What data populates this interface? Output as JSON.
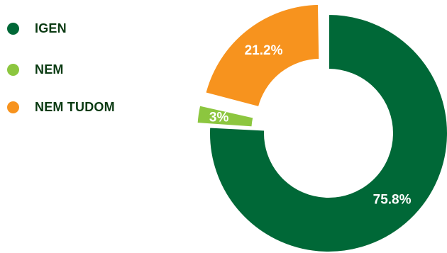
{
  "chart_data": {
    "type": "pie",
    "style": "donut",
    "title": "",
    "categories": [
      "IGEN",
      "NEM",
      "NEM TUDOM"
    ],
    "values": [
      75.8,
      3,
      21.2
    ],
    "labels": [
      "75.8%",
      "3%",
      "21.2%"
    ],
    "colors": [
      "#006837",
      "#8cc63f",
      "#f7931e"
    ],
    "exploded": [
      false,
      true,
      true
    ],
    "legend_position": "left"
  },
  "legend": {
    "items": [
      {
        "label": "IGEN",
        "color": "#006837"
      },
      {
        "label": "NEM",
        "color": "#8cc63f"
      },
      {
        "label": "NEM TUDOM",
        "color": "#f7931e"
      }
    ]
  }
}
